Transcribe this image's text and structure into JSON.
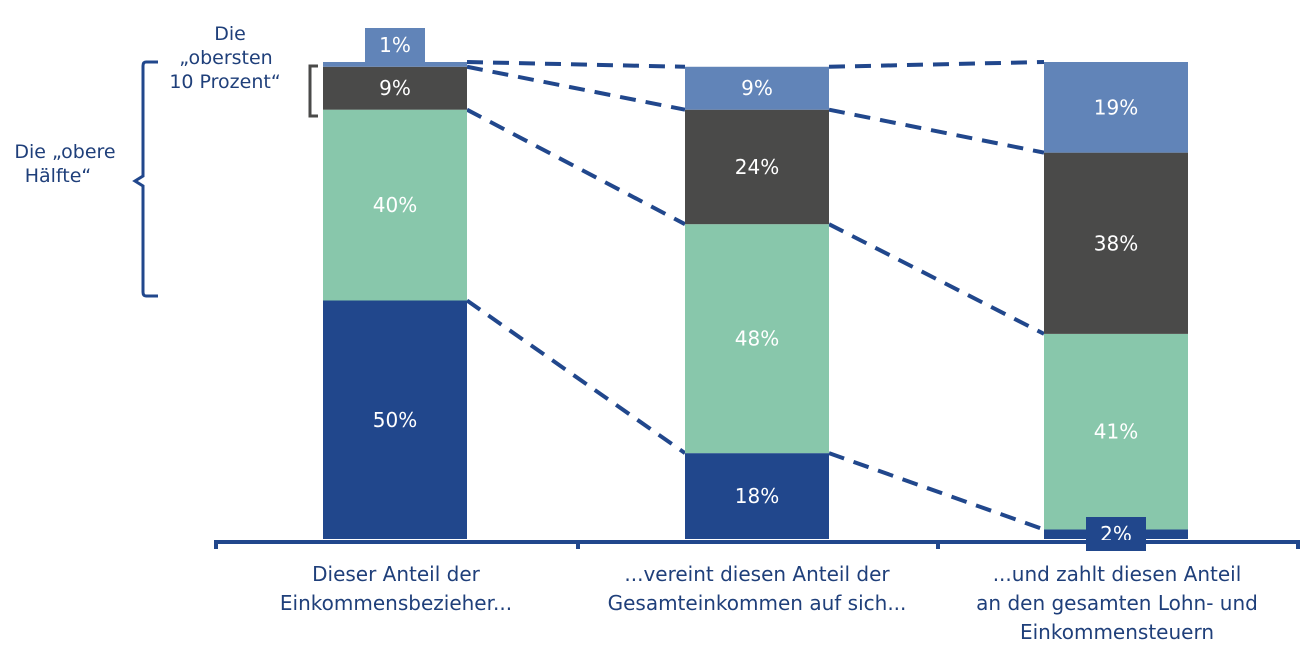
{
  "chart_data": {
    "type": "bar",
    "stacked": true,
    "orientation": "vertical",
    "ylim": [
      0,
      100
    ],
    "grid": false,
    "categories": [
      [
        "Dieser Anteil der",
        "Einkommensbezieher..."
      ],
      [
        "...vereint diesen Anteil der",
        "Gesamteinkommen auf sich..."
      ],
      [
        "...und zahlt diesen Anteil",
        "an den gesamten Lohn- und",
        "Einkommensteuern"
      ]
    ],
    "series": [
      {
        "key": "bottom50",
        "values": [
          50,
          18,
          2
        ],
        "labels": [
          "50%",
          "18%",
          "2%"
        ],
        "color": "#21478c"
      },
      {
        "key": "p50to90",
        "values": [
          40,
          48,
          41
        ],
        "labels": [
          "40%",
          "48%",
          "41%"
        ],
        "color": "#88c7ab"
      },
      {
        "key": "p90to99",
        "values": [
          9,
          24,
          38
        ],
        "labels": [
          "9%",
          "24%",
          "38%"
        ],
        "color": "#4a4a49"
      },
      {
        "key": "top1",
        "values": [
          1,
          9,
          19
        ],
        "labels": [
          "1%",
          "9%",
          "19%"
        ],
        "color": "#6184b8"
      }
    ],
    "annotations": {
      "top10": [
        "Die",
        "„obersten",
        "10 Prozent“"
      ],
      "upper_half": [
        "Die „obere",
        "Hälfte“"
      ]
    }
  },
  "colors": {
    "axis": "#21478c",
    "connector": "#21478c",
    "bracket_upper": "#21478c",
    "bracket_top10": "#4a4a49"
  }
}
